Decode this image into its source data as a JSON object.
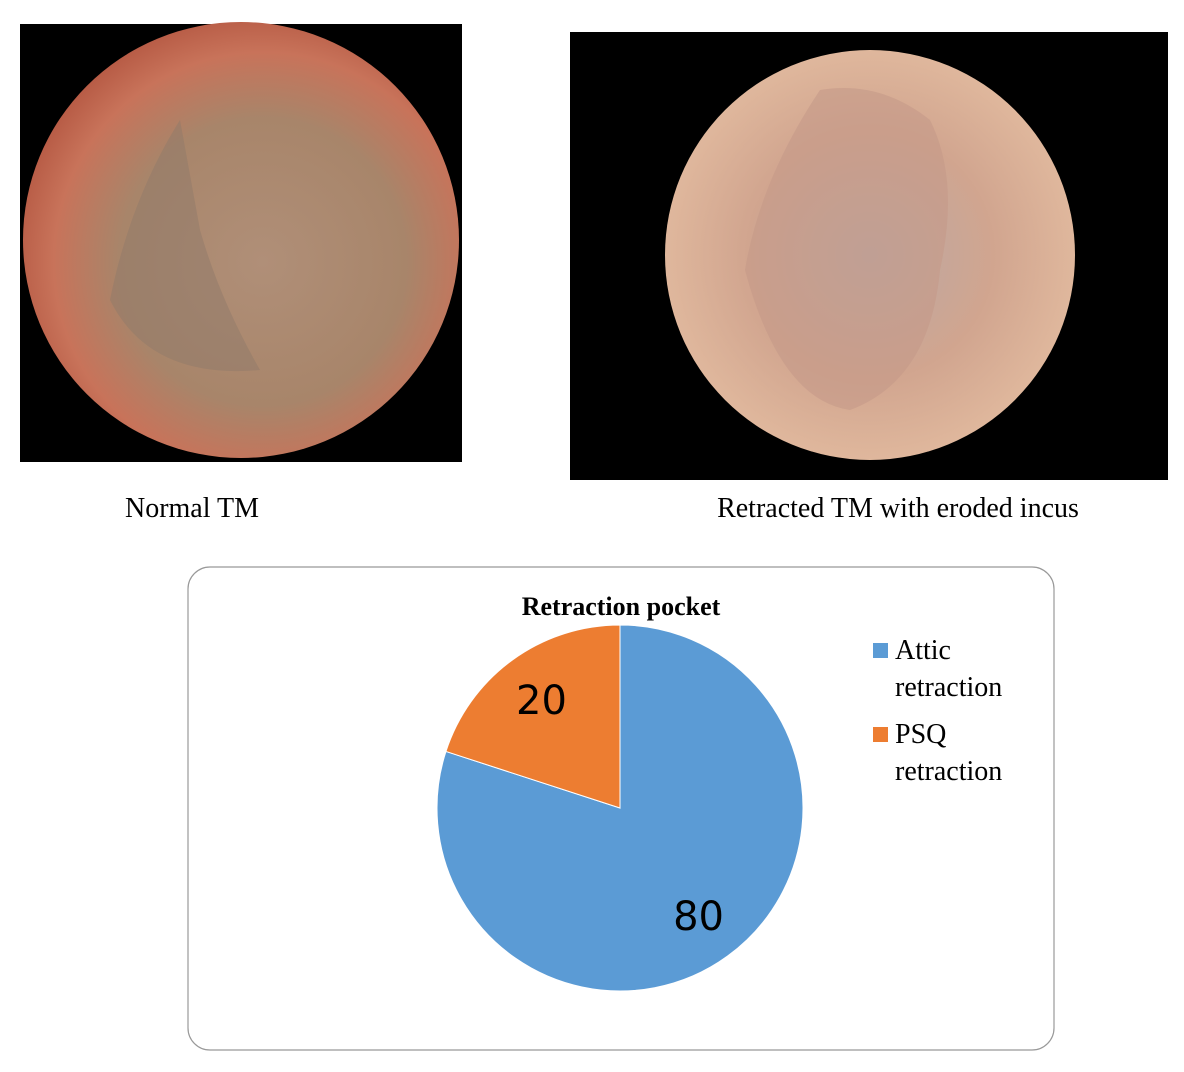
{
  "images": [
    {
      "caption": "Normal TM"
    },
    {
      "caption": "Retracted TM with eroded incus"
    }
  ],
  "chart_data": {
    "type": "pie",
    "title": "Retraction pocket",
    "categories": [
      "Attic retraction",
      "PSQ retraction"
    ],
    "values": [
      80,
      20
    ],
    "colors": [
      "#5b9bd5",
      "#ed7d31"
    ],
    "legend": "right"
  }
}
